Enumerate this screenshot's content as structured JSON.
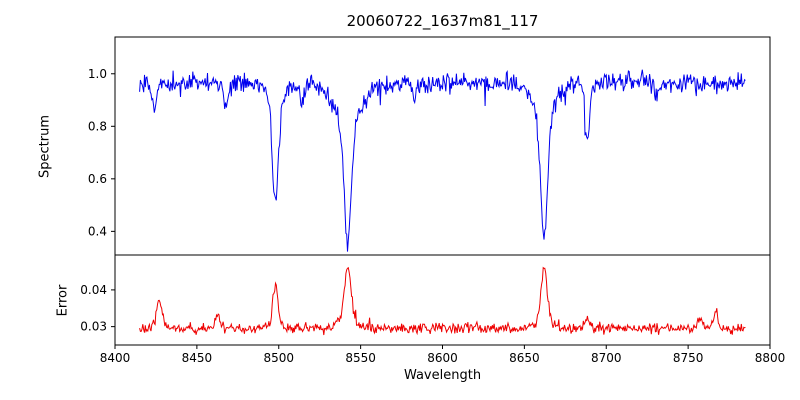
{
  "chart_data": {
    "type": "line",
    "title": "20060722_1637m81_117",
    "xlabel": "Wavelength",
    "x_range": [
      8400,
      8800
    ],
    "x_data_range": [
      8415,
      8785
    ],
    "x_ticks": [
      {
        "v": 8400,
        "label": "8400"
      },
      {
        "v": 8450,
        "label": "8450"
      },
      {
        "v": 8500,
        "label": "8500"
      },
      {
        "v": 8550,
        "label": "8550"
      },
      {
        "v": 8600,
        "label": "8600"
      },
      {
        "v": 8650,
        "label": "8650"
      },
      {
        "v": 8700,
        "label": "8700"
      },
      {
        "v": 8750,
        "label": "8750"
      },
      {
        "v": 8800,
        "label": "8800"
      }
    ],
    "panels": [
      {
        "name": "spectrum",
        "ylabel": "Spectrum",
        "color": "#0000ee",
        "ylim": [
          0.31,
          1.14
        ],
        "y_ticks": [
          {
            "v": 0.4,
            "label": "0.4"
          },
          {
            "v": 0.6,
            "label": "0.6"
          },
          {
            "v": 0.8,
            "label": "0.8"
          },
          {
            "v": 1.0,
            "label": "1.0"
          }
        ],
        "continuum": 0.965,
        "noise_sigma": 0.018,
        "spike_prob": 0.02,
        "spike_max": 0.09,
        "absorption_lines": [
          {
            "center": 8424.0,
            "depth": 0.1,
            "width": 1.5,
            "wing_depth": 0.0,
            "wing_width": 3.0
          },
          {
            "center": 8468.0,
            "depth": 0.09,
            "width": 1.3,
            "wing_depth": 0.0,
            "wing_width": 3.0
          },
          {
            "center": 8498.0,
            "depth": 0.38,
            "width": 1.8,
            "wing_depth": 0.075,
            "wing_width": 5.0
          },
          {
            "center": 8514.0,
            "depth": 0.08,
            "width": 1.2,
            "wing_depth": 0.0,
            "wing_width": 3.0
          },
          {
            "center": 8542.1,
            "depth": 0.46,
            "width": 2.2,
            "wing_depth": 0.15,
            "wing_width": 8.0
          },
          {
            "center": 8583.0,
            "depth": 0.05,
            "width": 1.2,
            "wing_depth": 0.0,
            "wing_width": 3.0
          },
          {
            "center": 8662.1,
            "depth": 0.47,
            "width": 2.0,
            "wing_depth": 0.125,
            "wing_width": 6.5
          },
          {
            "center": 8688.6,
            "depth": 0.22,
            "width": 1.5,
            "wing_depth": 0.0,
            "wing_width": 3.0
          },
          {
            "center": 8731.0,
            "depth": 0.05,
            "width": 1.2,
            "wing_depth": 0.0,
            "wing_width": 3.0
          }
        ]
      },
      {
        "name": "error",
        "ylabel": "Error",
        "color": "#ee0000",
        "ylim": [
          0.025,
          0.0495
        ],
        "y_ticks": [
          {
            "v": 0.03,
            "label": "0.03"
          },
          {
            "v": 0.04,
            "label": "0.04"
          }
        ],
        "baseline": 0.0295,
        "noise_sigma": 0.0007,
        "spike_prob": 0.02,
        "spike_max": 0.0025,
        "peaks": [
          {
            "center": 8427.0,
            "height": 0.007,
            "width": 1.6,
            "wing_height": 0.0005,
            "wing_width": 4.0
          },
          {
            "center": 8463.0,
            "height": 0.004,
            "width": 1.4,
            "wing_height": 0.0,
            "wing_width": 4.0
          },
          {
            "center": 8498.0,
            "height": 0.011,
            "width": 1.6,
            "wing_height": 0.001,
            "wing_width": 4.0
          },
          {
            "center": 8542.1,
            "height": 0.015,
            "width": 2.0,
            "wing_height": 0.002,
            "wing_width": 6.0
          },
          {
            "center": 8662.1,
            "height": 0.0145,
            "width": 1.8,
            "wing_height": 0.002,
            "wing_width": 5.0
          },
          {
            "center": 8688.6,
            "height": 0.003,
            "width": 1.4,
            "wing_height": 0.0,
            "wing_width": 4.0
          },
          {
            "center": 8757.0,
            "height": 0.003,
            "width": 1.4,
            "wing_height": 0.0,
            "wing_width": 4.0
          },
          {
            "center": 8767.0,
            "height": 0.0045,
            "width": 1.4,
            "wing_height": 0.0,
            "wing_width": 4.0
          }
        ]
      }
    ]
  }
}
